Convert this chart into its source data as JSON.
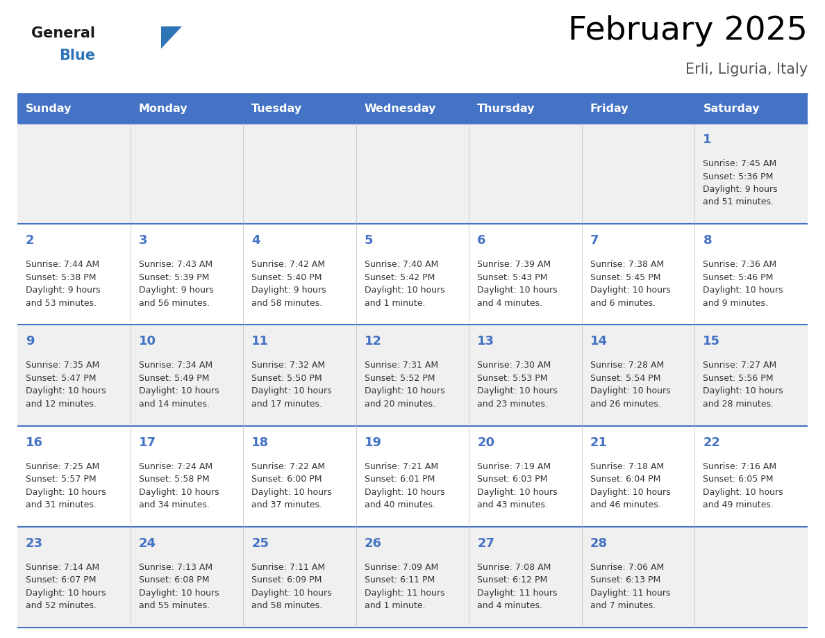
{
  "title": "February 2025",
  "subtitle": "Erli, Liguria, Italy",
  "header_bg": "#4472C4",
  "header_text_color": "#FFFFFF",
  "cell_bg_odd": "#F0F0F0",
  "cell_bg_even": "#FFFFFF",
  "day_number_color": "#4472C4",
  "text_color": "#333333",
  "border_color": "#4472C4",
  "days_of_week": [
    "Sunday",
    "Monday",
    "Tuesday",
    "Wednesday",
    "Thursday",
    "Friday",
    "Saturday"
  ],
  "weeks": [
    [
      {
        "day": null,
        "text": ""
      },
      {
        "day": null,
        "text": ""
      },
      {
        "day": null,
        "text": ""
      },
      {
        "day": null,
        "text": ""
      },
      {
        "day": null,
        "text": ""
      },
      {
        "day": null,
        "text": ""
      },
      {
        "day": 1,
        "text": "Sunrise: 7:45 AM\nSunset: 5:36 PM\nDaylight: 9 hours\nand 51 minutes."
      }
    ],
    [
      {
        "day": 2,
        "text": "Sunrise: 7:44 AM\nSunset: 5:38 PM\nDaylight: 9 hours\nand 53 minutes."
      },
      {
        "day": 3,
        "text": "Sunrise: 7:43 AM\nSunset: 5:39 PM\nDaylight: 9 hours\nand 56 minutes."
      },
      {
        "day": 4,
        "text": "Sunrise: 7:42 AM\nSunset: 5:40 PM\nDaylight: 9 hours\nand 58 minutes."
      },
      {
        "day": 5,
        "text": "Sunrise: 7:40 AM\nSunset: 5:42 PM\nDaylight: 10 hours\nand 1 minute."
      },
      {
        "day": 6,
        "text": "Sunrise: 7:39 AM\nSunset: 5:43 PM\nDaylight: 10 hours\nand 4 minutes."
      },
      {
        "day": 7,
        "text": "Sunrise: 7:38 AM\nSunset: 5:45 PM\nDaylight: 10 hours\nand 6 minutes."
      },
      {
        "day": 8,
        "text": "Sunrise: 7:36 AM\nSunset: 5:46 PM\nDaylight: 10 hours\nand 9 minutes."
      }
    ],
    [
      {
        "day": 9,
        "text": "Sunrise: 7:35 AM\nSunset: 5:47 PM\nDaylight: 10 hours\nand 12 minutes."
      },
      {
        "day": 10,
        "text": "Sunrise: 7:34 AM\nSunset: 5:49 PM\nDaylight: 10 hours\nand 14 minutes."
      },
      {
        "day": 11,
        "text": "Sunrise: 7:32 AM\nSunset: 5:50 PM\nDaylight: 10 hours\nand 17 minutes."
      },
      {
        "day": 12,
        "text": "Sunrise: 7:31 AM\nSunset: 5:52 PM\nDaylight: 10 hours\nand 20 minutes."
      },
      {
        "day": 13,
        "text": "Sunrise: 7:30 AM\nSunset: 5:53 PM\nDaylight: 10 hours\nand 23 minutes."
      },
      {
        "day": 14,
        "text": "Sunrise: 7:28 AM\nSunset: 5:54 PM\nDaylight: 10 hours\nand 26 minutes."
      },
      {
        "day": 15,
        "text": "Sunrise: 7:27 AM\nSunset: 5:56 PM\nDaylight: 10 hours\nand 28 minutes."
      }
    ],
    [
      {
        "day": 16,
        "text": "Sunrise: 7:25 AM\nSunset: 5:57 PM\nDaylight: 10 hours\nand 31 minutes."
      },
      {
        "day": 17,
        "text": "Sunrise: 7:24 AM\nSunset: 5:58 PM\nDaylight: 10 hours\nand 34 minutes."
      },
      {
        "day": 18,
        "text": "Sunrise: 7:22 AM\nSunset: 6:00 PM\nDaylight: 10 hours\nand 37 minutes."
      },
      {
        "day": 19,
        "text": "Sunrise: 7:21 AM\nSunset: 6:01 PM\nDaylight: 10 hours\nand 40 minutes."
      },
      {
        "day": 20,
        "text": "Sunrise: 7:19 AM\nSunset: 6:03 PM\nDaylight: 10 hours\nand 43 minutes."
      },
      {
        "day": 21,
        "text": "Sunrise: 7:18 AM\nSunset: 6:04 PM\nDaylight: 10 hours\nand 46 minutes."
      },
      {
        "day": 22,
        "text": "Sunrise: 7:16 AM\nSunset: 6:05 PM\nDaylight: 10 hours\nand 49 minutes."
      }
    ],
    [
      {
        "day": 23,
        "text": "Sunrise: 7:14 AM\nSunset: 6:07 PM\nDaylight: 10 hours\nand 52 minutes."
      },
      {
        "day": 24,
        "text": "Sunrise: 7:13 AM\nSunset: 6:08 PM\nDaylight: 10 hours\nand 55 minutes."
      },
      {
        "day": 25,
        "text": "Sunrise: 7:11 AM\nSunset: 6:09 PM\nDaylight: 10 hours\nand 58 minutes."
      },
      {
        "day": 26,
        "text": "Sunrise: 7:09 AM\nSunset: 6:11 PM\nDaylight: 11 hours\nand 1 minute."
      },
      {
        "day": 27,
        "text": "Sunrise: 7:08 AM\nSunset: 6:12 PM\nDaylight: 11 hours\nand 4 minutes."
      },
      {
        "day": 28,
        "text": "Sunrise: 7:06 AM\nSunset: 6:13 PM\nDaylight: 11 hours\nand 7 minutes."
      },
      {
        "day": null,
        "text": ""
      }
    ]
  ],
  "logo_general_color": "#1a1a1a",
  "logo_blue_color": "#2E75B6",
  "figsize": [
    11.88,
    9.18
  ],
  "dpi": 100
}
